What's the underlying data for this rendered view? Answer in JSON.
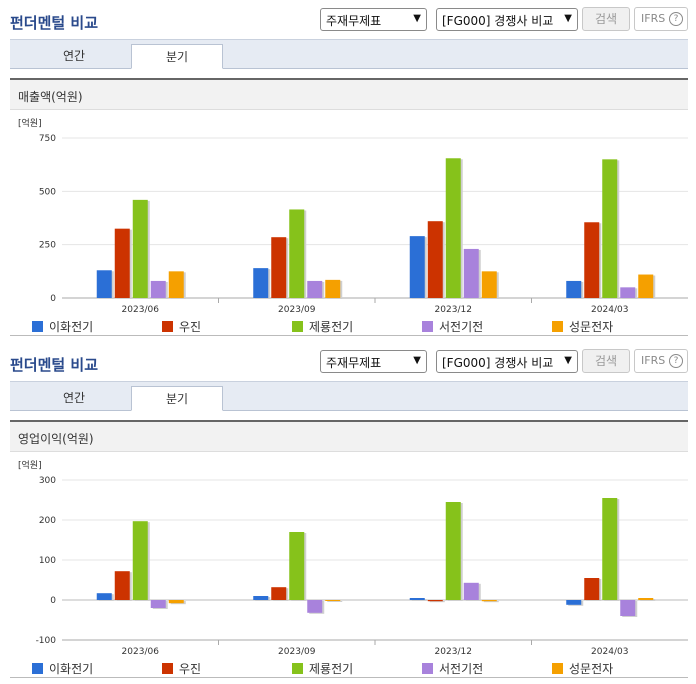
{
  "panels": [
    {
      "title": "펀더멘털 비교",
      "select_statement": "주재무제표",
      "select_compare": "[FG000] 경쟁사 비교",
      "search_label": "검색",
      "ifrs_label": "IFRS",
      "help_symbol": "?",
      "tabs": [
        {
          "label": "연간",
          "active": false
        },
        {
          "label": "분기",
          "active": true
        }
      ],
      "metric_label": "매출액(억원)",
      "unit_label": "[억원]",
      "chart_data": {
        "type": "bar",
        "categories": [
          "2023/06",
          "2023/09",
          "2023/12",
          "2024/03"
        ],
        "ylim": [
          0,
          750
        ],
        "yticks": [
          0,
          250,
          500,
          750
        ],
        "series": [
          {
            "name": "이화전기",
            "color": "#2b6fd6",
            "values": [
              130,
              140,
              290,
              80
            ]
          },
          {
            "name": "우진",
            "color": "#cc3300",
            "values": [
              325,
              285,
              360,
              355
            ]
          },
          {
            "name": "제룡전기",
            "color": "#86c21b",
            "values": [
              460,
              415,
              655,
              650
            ]
          },
          {
            "name": "서전기전",
            "color": "#a882dc",
            "values": [
              80,
              80,
              230,
              50
            ]
          },
          {
            "name": "성문전자",
            "color": "#f5a000",
            "values": [
              125,
              85,
              125,
              110
            ]
          }
        ]
      }
    },
    {
      "title": "펀더멘털 비교",
      "select_statement": "주재무제표",
      "select_compare": "[FG000] 경쟁사 비교",
      "search_label": "검색",
      "ifrs_label": "IFRS",
      "help_symbol": "?",
      "tabs": [
        {
          "label": "연간",
          "active": false
        },
        {
          "label": "분기",
          "active": true
        }
      ],
      "metric_label": "영업이익(억원)",
      "unit_label": "[억원]",
      "chart_data": {
        "type": "bar",
        "categories": [
          "2023/06",
          "2023/09",
          "2023/12",
          "2024/03"
        ],
        "ylim": [
          -100,
          300
        ],
        "yticks": [
          -100,
          0,
          100,
          200,
          300
        ],
        "series": [
          {
            "name": "이화전기",
            "color": "#2b6fd6",
            "values": [
              17,
              10,
              5,
              -12
            ]
          },
          {
            "name": "우진",
            "color": "#cc3300",
            "values": [
              72,
              32,
              -3,
              55
            ]
          },
          {
            "name": "제룡전기",
            "color": "#86c21b",
            "values": [
              197,
              170,
              245,
              255
            ]
          },
          {
            "name": "서전기전",
            "color": "#a882dc",
            "values": [
              -20,
              -32,
              43,
              -40
            ]
          },
          {
            "name": "성문전자",
            "color": "#f5a000",
            "values": [
              -8,
              -2,
              -3,
              5
            ]
          }
        ]
      }
    }
  ]
}
